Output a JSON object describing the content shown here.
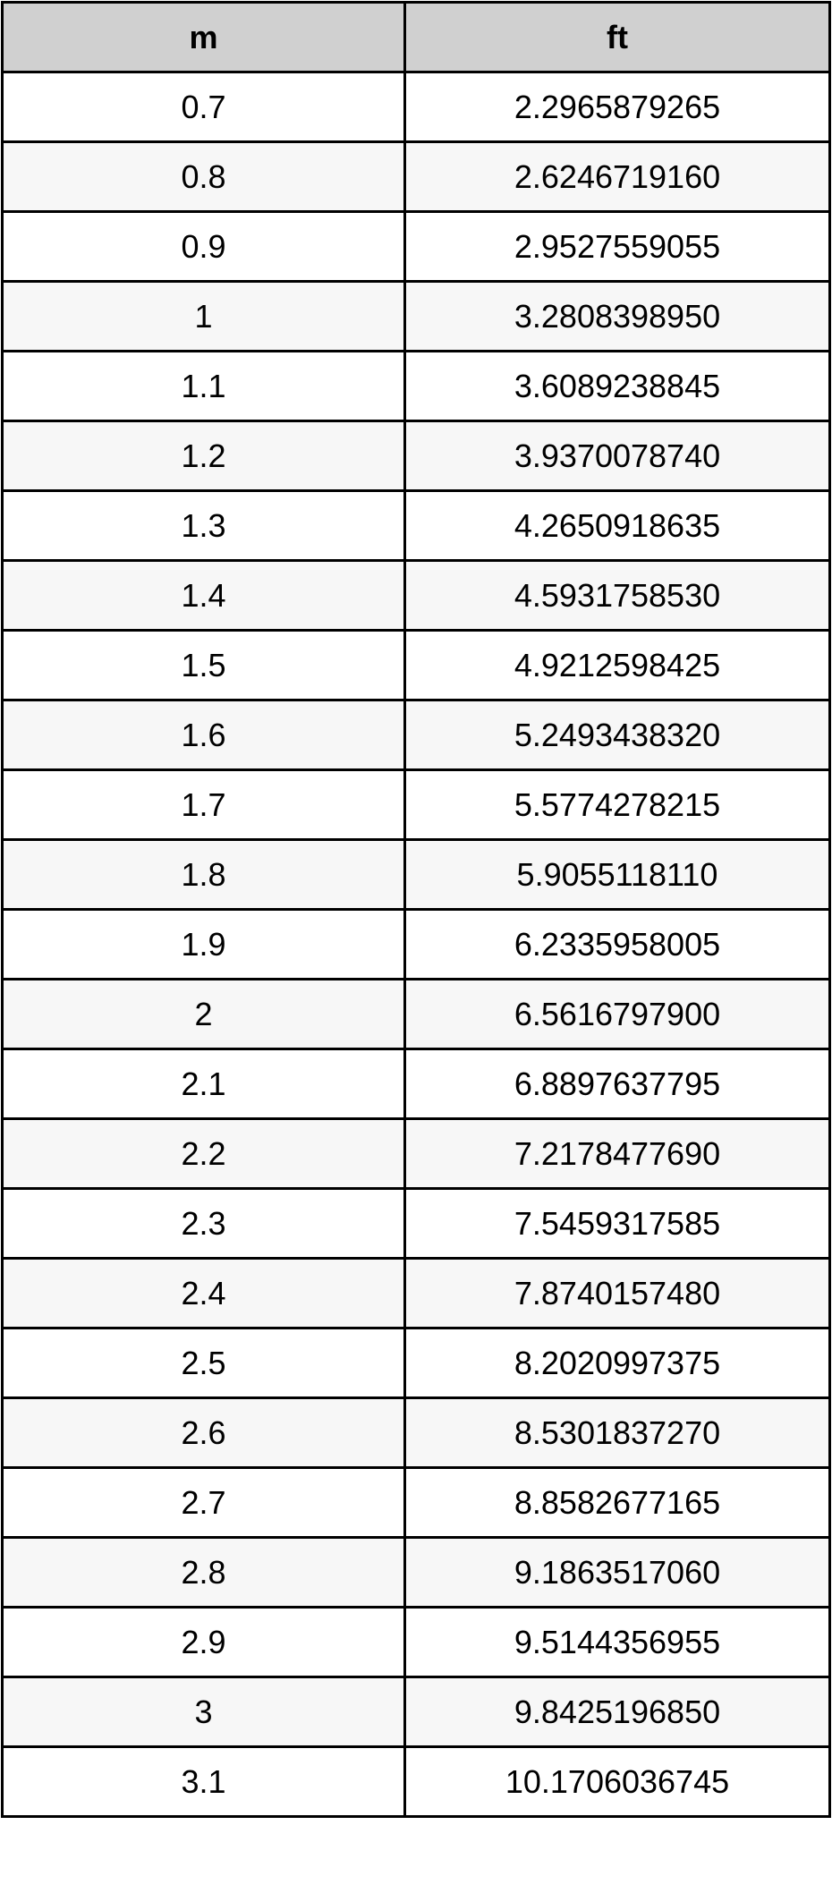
{
  "table": {
    "headers": [
      "m",
      "ft"
    ],
    "rows": [
      [
        "0.7",
        "2.2965879265"
      ],
      [
        "0.8",
        "2.6246719160"
      ],
      [
        "0.9",
        "2.9527559055"
      ],
      [
        "1",
        "3.2808398950"
      ],
      [
        "1.1",
        "3.6089238845"
      ],
      [
        "1.2",
        "3.9370078740"
      ],
      [
        "1.3",
        "4.2650918635"
      ],
      [
        "1.4",
        "4.5931758530"
      ],
      [
        "1.5",
        "4.9212598425"
      ],
      [
        "1.6",
        "5.2493438320"
      ],
      [
        "1.7",
        "5.5774278215"
      ],
      [
        "1.8",
        "5.9055118110"
      ],
      [
        "1.9",
        "6.2335958005"
      ],
      [
        "2",
        "6.5616797900"
      ],
      [
        "2.1",
        "6.8897637795"
      ],
      [
        "2.2",
        "7.2178477690"
      ],
      [
        "2.3",
        "7.5459317585"
      ],
      [
        "2.4",
        "7.8740157480"
      ],
      [
        "2.5",
        "8.2020997375"
      ],
      [
        "2.6",
        "8.5301837270"
      ],
      [
        "2.7",
        "8.8582677165"
      ],
      [
        "2.8",
        "9.1863517060"
      ],
      [
        "2.9",
        "9.5144356955"
      ],
      [
        "3",
        "9.8425196850"
      ],
      [
        "3.1",
        "10.1706036745"
      ]
    ]
  },
  "colors": {
    "header_bg": "#d0d0d0",
    "alt_row_bg": "#f7f7f7",
    "border": "#000000"
  }
}
